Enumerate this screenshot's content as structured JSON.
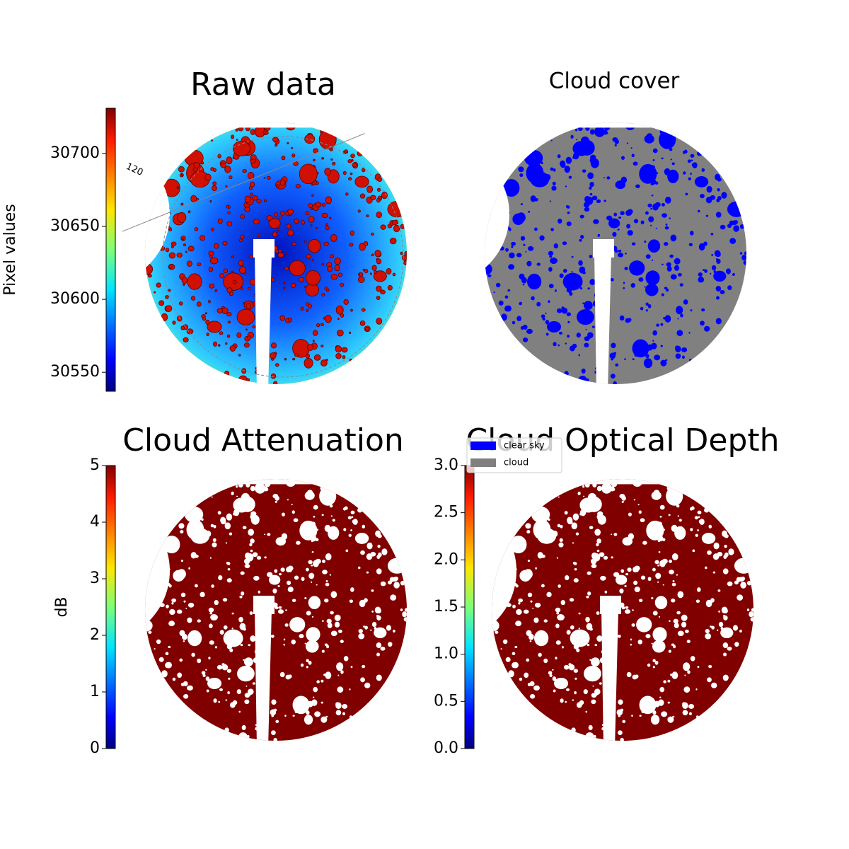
{
  "chart_data": [
    {
      "type": "image",
      "title": "Raw data",
      "colormap": "jet",
      "colorbar_label": "Pixel values",
      "ylim": [
        30537,
        30731
      ],
      "yticks": [
        30550,
        30600,
        30650,
        30700
      ],
      "annotations": [
        "120"
      ]
    },
    {
      "type": "image",
      "title": "Cloud cover",
      "series": [
        {
          "name": "clear sky",
          "color": "#0000ff"
        },
        {
          "name": "cloud",
          "color": "#808080"
        }
      ]
    },
    {
      "type": "image",
      "title": "Cloud Attenuation",
      "colormap": "jet",
      "colorbar_label": "dB",
      "ylim": [
        0,
        5
      ],
      "yticks": [
        0,
        1,
        2,
        3,
        4,
        5
      ]
    },
    {
      "type": "image",
      "title": "Cloud Optical Depth",
      "colormap": "jet",
      "ylim": [
        0,
        3
      ],
      "yticks": [
        {
          "value": 0,
          "label": "0.0"
        },
        {
          "value": 0.5,
          "label": "0.5"
        },
        {
          "value": 1,
          "label": "1.0"
        },
        {
          "value": 1.5,
          "label": "1.5"
        },
        {
          "value": 2,
          "label": "2.0"
        },
        {
          "value": 2.5,
          "label": "2.5"
        },
        {
          "value": 3,
          "label": "3.0"
        }
      ]
    }
  ]
}
